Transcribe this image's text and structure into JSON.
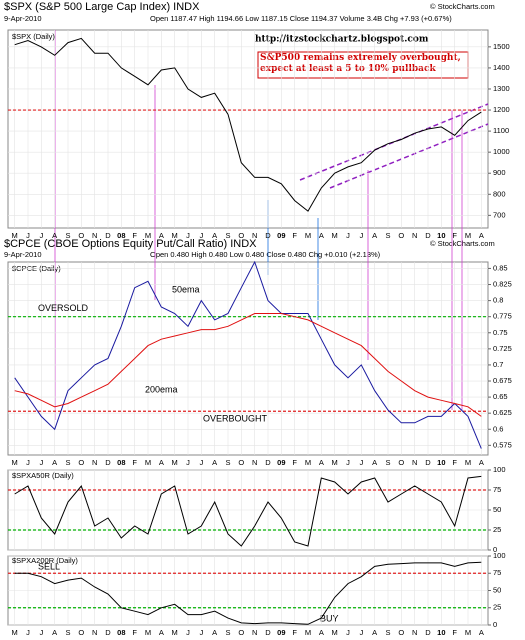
{
  "chart_data": [
    {
      "type": "line",
      "title": "$SPX (S&P 500 Large Cap Index) INDX",
      "date": "9-Apr-2010",
      "quote": "Open 1187.47 High 1194.66 Low 1187.15 Close 1194.37 Volume 3.4B Chg +7.93 (+0.67%)",
      "copyright": "© StockCharts.com",
      "url": "http://itzstockchartz.blogspot.com",
      "annotation": "S&P500 remains extremely overbought, expect at least a 5 to 10%  pullback",
      "categories": [
        "M",
        "J",
        "J",
        "A",
        "S",
        "O",
        "N",
        "D",
        "08",
        "F",
        "M",
        "A",
        "M",
        "J",
        "J",
        "A",
        "S",
        "O",
        "N",
        "D",
        "09",
        "F",
        "M",
        "A",
        "M",
        "J",
        "J",
        "A",
        "S",
        "O",
        "N",
        "D",
        "10",
        "F",
        "M",
        "A"
      ],
      "series": [
        {
          "name": "$SPX (Daily)",
          "color": "#000000",
          "values": [
            1510,
            1530,
            1500,
            1460,
            1520,
            1540,
            1470,
            1470,
            1400,
            1360,
            1320,
            1390,
            1400,
            1300,
            1260,
            1280,
            1180,
            950,
            880,
            880,
            850,
            770,
            720,
            830,
            900,
            930,
            950,
            1010,
            1040,
            1060,
            1090,
            1110,
            1120,
            1080,
            1150,
            1190
          ]
        }
      ],
      "ylim": [
        640,
        1580
      ],
      "yticks": [
        700,
        800,
        900,
        1000,
        1100,
        1200,
        1300,
        1400,
        1500
      ],
      "reference_lines": [
        {
          "value": 1200,
          "color": "#e02020"
        }
      ],
      "grid": true
    },
    {
      "type": "line",
      "title": "$CPCE (CBOE Options Equity Put/Call Ratio) INDX",
      "date": "9-Apr-2010",
      "quote": "Open 0.480 High 0.480 Low 0.480 Close 0.480 Chg +0.010 (+2.13%)",
      "copyright": "© StockCharts.com",
      "subtitle": "$CPCE (Daily)",
      "categories": [
        "M",
        "J",
        "J",
        "A",
        "S",
        "O",
        "N",
        "D",
        "08",
        "F",
        "M",
        "A",
        "M",
        "J",
        "J",
        "A",
        "S",
        "O",
        "N",
        "D",
        "09",
        "F",
        "M",
        "A",
        "M",
        "J",
        "J",
        "A",
        "S",
        "O",
        "N",
        "D",
        "10",
        "F",
        "M",
        "A"
      ],
      "series": [
        {
          "name": "50ema",
          "color": "#1a1aa0",
          "values": [
            0.68,
            0.65,
            0.62,
            0.6,
            0.66,
            0.68,
            0.7,
            0.71,
            0.76,
            0.82,
            0.83,
            0.79,
            0.78,
            0.76,
            0.8,
            0.77,
            0.78,
            0.82,
            0.86,
            0.8,
            0.78,
            0.78,
            0.78,
            0.74,
            0.7,
            0.68,
            0.7,
            0.66,
            0.63,
            0.61,
            0.61,
            0.62,
            0.62,
            0.64,
            0.62,
            0.57
          ]
        },
        {
          "name": "200ema",
          "color": "#e01010",
          "values": [
            0.66,
            0.655,
            0.645,
            0.635,
            0.64,
            0.65,
            0.66,
            0.67,
            0.69,
            0.71,
            0.73,
            0.74,
            0.745,
            0.75,
            0.755,
            0.755,
            0.76,
            0.77,
            0.78,
            0.78,
            0.78,
            0.775,
            0.77,
            0.76,
            0.75,
            0.74,
            0.73,
            0.71,
            0.69,
            0.675,
            0.66,
            0.65,
            0.645,
            0.64,
            0.635,
            0.62
          ]
        }
      ],
      "ylim": [
        0.56,
        0.86
      ],
      "yticks": [
        0.575,
        0.6,
        0.625,
        0.65,
        0.675,
        0.7,
        0.725,
        0.75,
        0.775,
        0.8,
        0.825,
        0.85
      ],
      "reference_lines": [
        {
          "value": 0.775,
          "color": "#00b000",
          "label": "OVERSOLD"
        },
        {
          "value": 0.628,
          "color": "#e02020",
          "label": "OVERBOUGHT"
        }
      ],
      "grid": true
    },
    {
      "type": "line",
      "series": [
        {
          "name": "$SPXA50R (Daily)",
          "color": "#000000",
          "values": [
            70,
            80,
            40,
            20,
            60,
            80,
            30,
            40,
            15,
            30,
            20,
            70,
            80,
            20,
            30,
            60,
            20,
            5,
            30,
            60,
            40,
            10,
            5,
            90,
            85,
            70,
            85,
            90,
            60,
            70,
            80,
            70,
            60,
            30,
            90,
            92
          ]
        }
      ],
      "ylim": [
        0,
        100
      ],
      "yticks": [
        0,
        25,
        50,
        75,
        100
      ],
      "reference_lines": [
        {
          "value": 75,
          "color": "#e02020"
        },
        {
          "value": 25,
          "color": "#00b000"
        }
      ],
      "grid": true
    },
    {
      "type": "line",
      "categories": [
        "M",
        "J",
        "J",
        "A",
        "S",
        "O",
        "N",
        "D",
        "08",
        "F",
        "M",
        "A",
        "M",
        "J",
        "J",
        "A",
        "S",
        "O",
        "N",
        "D",
        "09",
        "F",
        "M",
        "A",
        "M",
        "J",
        "J",
        "A",
        "S",
        "O",
        "N",
        "D",
        "10",
        "F",
        "M",
        "A"
      ],
      "series": [
        {
          "name": "$SPXA200R (Daily)",
          "color": "#000000",
          "values": [
            75,
            75,
            70,
            60,
            65,
            68,
            55,
            45,
            25,
            20,
            15,
            25,
            30,
            15,
            15,
            20,
            10,
            3,
            2,
            3,
            3,
            2,
            1,
            10,
            40,
            60,
            70,
            85,
            88,
            89,
            90,
            90,
            90,
            85,
            90,
            91
          ]
        }
      ],
      "ylim": [
        0,
        100
      ],
      "yticks": [
        0,
        25,
        50,
        75,
        100
      ],
      "reference_lines": [
        {
          "value": 75,
          "color": "#e02020",
          "label": "SELL"
        },
        {
          "value": 25,
          "color": "#00b000"
        }
      ],
      "annotations": [
        "BUY"
      ],
      "grid": true
    }
  ]
}
